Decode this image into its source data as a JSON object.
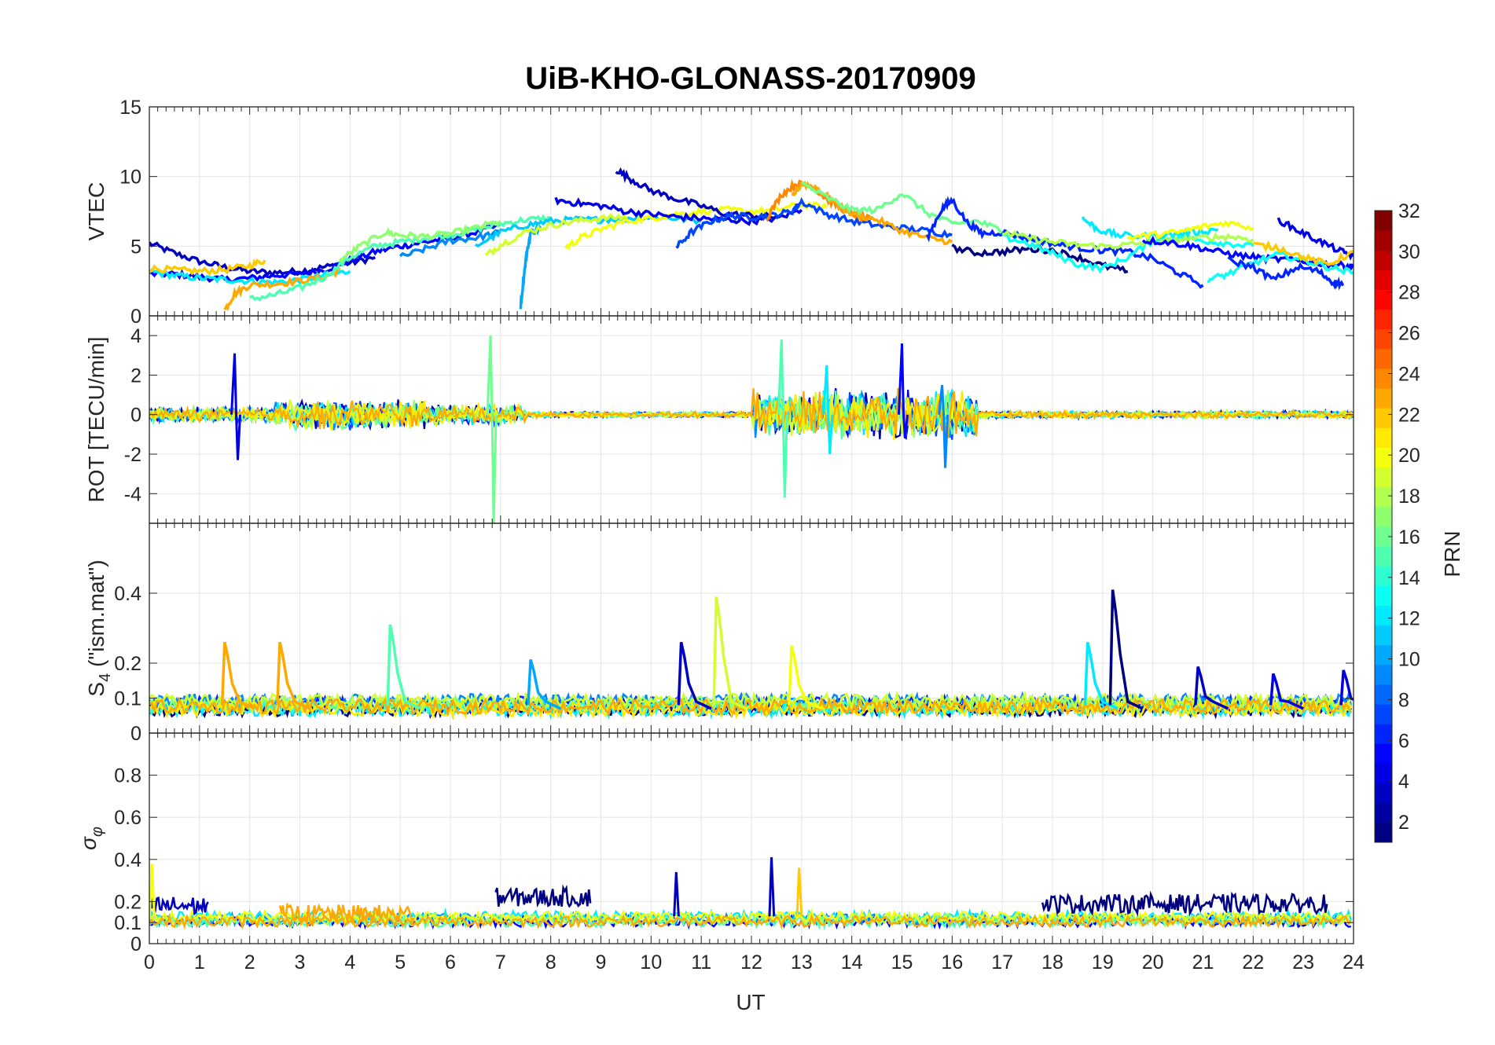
{
  "chart_data": {
    "type": "line",
    "title": "UiB-KHO-GLONASS-20170909",
    "xlabel": "UT",
    "xlim": [
      0,
      24
    ],
    "x_ticks": [
      "0",
      "1",
      "2",
      "3",
      "4",
      "5",
      "6",
      "7",
      "8",
      "9",
      "10",
      "11",
      "12",
      "13",
      "14",
      "15",
      "16",
      "17",
      "18",
      "19",
      "20",
      "21",
      "22",
      "23",
      "24"
    ],
    "grid": true,
    "colorbar": {
      "label": "PRN",
      "range": [
        1,
        32
      ],
      "colormap": "jet",
      "ticks": [
        "2",
        "4",
        "6",
        "8",
        "10",
        "12",
        "14",
        "16",
        "18",
        "20",
        "22",
        "24",
        "26",
        "28",
        "30",
        "32"
      ],
      "placement": "right"
    },
    "panels": [
      {
        "id": "vtec",
        "ylabel": "VTEC",
        "ylim": [
          0,
          15
        ],
        "y_ticks": [
          "0",
          "5",
          "10",
          "15"
        ],
        "series": [
          {
            "prn": 3,
            "x": [
              0,
              0.5,
              1,
              1.5,
              2,
              2.5,
              3,
              3.5,
              4,
              4.5
            ],
            "values": [
              5.2,
              4.5,
              3.9,
              3.5,
              3.2,
              3.1,
              3.2,
              3.5,
              3.8,
              4.2
            ]
          },
          {
            "prn": 5,
            "x": [
              0,
              0.5,
              1,
              1.5,
              2,
              2.5,
              3,
              3.5,
              4,
              4.5,
              5,
              5.5,
              6,
              6.5,
              7
            ],
            "values": [
              3.0,
              3.0,
              2.8,
              2.6,
              2.7,
              2.9,
              3.0,
              3.3,
              4.0,
              4.6,
              5.0,
              5.3,
              5.6,
              6.0,
              6.5
            ]
          },
          {
            "prn": 12,
            "x": [
              0,
              0.5,
              1,
              1.5,
              2,
              2.5,
              3,
              3.5,
              4
            ],
            "values": [
              3.2,
              2.9,
              2.7,
              2.6,
              2.5,
              2.4,
              2.6,
              2.9,
              3.2
            ]
          },
          {
            "prn": 22,
            "x": [
              0,
              0.5,
              1,
              1.5,
              2,
              2.3
            ],
            "values": [
              3.4,
              3.3,
              3.2,
              3.3,
              3.6,
              4.0
            ]
          },
          {
            "prn": 23,
            "x": [
              1.5,
              1.7,
              2,
              2.5,
              3,
              3.5,
              3.8
            ],
            "values": [
              0.4,
              1.6,
              2.2,
              2.3,
              2.5,
              2.8,
              3.3
            ]
          },
          {
            "prn": 15,
            "x": [
              2,
              2.5,
              3,
              3.5,
              4,
              4.5,
              5,
              5.5,
              6,
              6.5,
              7,
              7.5,
              8
            ],
            "values": [
              1.2,
              1.5,
              2.0,
              2.8,
              4.2,
              5.0,
              5.3,
              5.6,
              5.8,
              6.2,
              6.6,
              6.9,
              7.0
            ]
          },
          {
            "prn": 17,
            "x": [
              3.8,
              4.2,
              4.7,
              5,
              5.5,
              6,
              6.5,
              7
            ],
            "values": [
              4.0,
              5.0,
              6.0,
              5.8,
              5.7,
              5.9,
              6.3,
              6.8
            ]
          },
          {
            "prn": 9,
            "x": [
              5,
              5.5,
              6,
              6.5,
              7
            ],
            "values": [
              4.2,
              4.8,
              5.4,
              5.6,
              6.0
            ]
          },
          {
            "prn": 11,
            "x": [
              6.5,
              7,
              7.5,
              8,
              8.5,
              9,
              9.5,
              10,
              10.5,
              11
            ],
            "values": [
              5.0,
              6.0,
              6.5,
              6.8,
              6.9,
              6.9,
              7.0,
              7.1,
              7.0,
              6.8
            ]
          },
          {
            "prn": 10,
            "x": [
              7.4,
              7.5,
              7.6,
              7.8
            ],
            "values": [
              0.7,
              4.0,
              6.0,
              6.3
            ]
          },
          {
            "prn": 19,
            "x": [
              6.7,
              7,
              7.5,
              8,
              8.5,
              9,
              9.5
            ],
            "values": [
              4.3,
              5.1,
              6.0,
              6.5,
              6.8,
              7.0,
              7.1
            ]
          },
          {
            "prn": 20,
            "x": [
              8.3,
              8.6,
              9,
              9.5,
              10,
              10.5,
              11,
              11.5,
              12,
              12.5,
              13,
              13.5
            ],
            "values": [
              4.9,
              5.6,
              6.2,
              6.8,
              7.0,
              7.3,
              7.5,
              7.6,
              7.5,
              7.6,
              8.0,
              7.8
            ]
          },
          {
            "prn": 4,
            "x": [
              8.1,
              8.5,
              9,
              9.5,
              10,
              10.5,
              11,
              11.5,
              12,
              12.5,
              13
            ],
            "values": [
              8.3,
              8.1,
              7.9,
              7.5,
              7.3,
              7.1,
              7.0,
              6.9,
              6.8,
              7.0,
              7.6
            ]
          },
          {
            "prn": 3,
            "x": [
              9.3,
              9.6,
              10,
              10.5,
              11,
              11.5,
              12,
              12.5
            ],
            "values": [
              10.5,
              9.8,
              9.0,
              8.4,
              7.9,
              7.3,
              7.2,
              7.1
            ]
          },
          {
            "prn": 7,
            "x": [
              10.5,
              10.8,
              11.2,
              11.6,
              12,
              12.4,
              12.8,
              13,
              13.5,
              14,
              14.5,
              15,
              15.5,
              16
            ],
            "values": [
              4.9,
              6.0,
              6.8,
              7.2,
              7.1,
              7.2,
              7.5,
              8.2,
              7.3,
              6.8,
              6.5,
              6.3,
              6.1,
              5.8
            ]
          },
          {
            "prn": 24,
            "x": [
              12.3,
              12.6,
              12.9,
              13.2,
              13.5,
              13.8,
              14.1,
              14.4
            ],
            "values": [
              7.0,
              8.7,
              9.5,
              9.3,
              8.4,
              7.7,
              7.2,
              6.9
            ]
          },
          {
            "prn": 23,
            "x": [
              12.8,
              13,
              13.3,
              13.6,
              14,
              14.5,
              15,
              15.5,
              16
            ],
            "values": [
              8.5,
              9.5,
              9.2,
              8.3,
              7.3,
              6.9,
              6.1,
              5.6,
              5.3
            ]
          },
          {
            "prn": 16,
            "x": [
              13,
              13.5,
              14,
              14.5,
              15,
              15.5,
              16,
              16.5,
              17,
              17.5,
              18
            ],
            "values": [
              9.5,
              8.5,
              7.6,
              7.6,
              8.8,
              7.4,
              6.6,
              6.8,
              6.1,
              5.6,
              5.2
            ]
          },
          {
            "prn": 6,
            "x": [
              15.5,
              15.8,
              16,
              16.3,
              16.6,
              17,
              17.5,
              18,
              18.5,
              19,
              19.5,
              20,
              20.5,
              21
            ],
            "values": [
              5.6,
              7.7,
              8.3,
              6.7,
              5.9,
              6.0,
              5.6,
              5.2,
              4.9,
              4.7,
              4.6,
              4.1,
              3.1,
              2.2
            ]
          },
          {
            "prn": 1,
            "x": [
              16,
              16.5,
              17,
              17.5,
              18,
              18.5,
              19,
              19.5
            ],
            "values": [
              4.9,
              4.5,
              4.6,
              4.8,
              4.7,
              4.2,
              3.6,
              3.2
            ]
          },
          {
            "prn": 13,
            "x": [
              17,
              17.5,
              18,
              18.5,
              19,
              19.5,
              20,
              20.5,
              21,
              21.5,
              22
            ],
            "values": [
              5.7,
              5.2,
              4.5,
              3.7,
              3.4,
              4.2,
              5.4,
              5.6,
              5.4,
              5.2,
              5.0
            ]
          },
          {
            "prn": 18,
            "x": [
              17,
              17.5,
              18,
              18.5,
              19,
              19.5,
              20,
              20.5,
              21,
              21.5,
              22
            ],
            "values": [
              6.0,
              5.6,
              5.3,
              5.1,
              5.0,
              5.1,
              5.3,
              5.5,
              5.6,
              5.7,
              5.5
            ]
          },
          {
            "prn": 12,
            "x": [
              18.6,
              18.9,
              19.3,
              19.8,
              20.3,
              20.8,
              21.3
            ],
            "values": [
              7.0,
              6.2,
              5.8,
              5.7,
              5.8,
              6.0,
              6.2
            ]
          },
          {
            "prn": 20,
            "x": [
              19.5,
              20,
              20.5,
              21,
              21.5,
              22
            ],
            "values": [
              5.6,
              5.8,
              6.0,
              6.4,
              6.7,
              6.3
            ]
          },
          {
            "prn": 5,
            "x": [
              19.8,
              20.3,
              20.8,
              21.3,
              21.8,
              22.3,
              22.8,
              23.3,
              23.8,
              24
            ],
            "values": [
              5.4,
              5.3,
              5.0,
              4.6,
              4.3,
              4.1,
              4.0,
              3.8,
              3.6,
              3.5
            ]
          },
          {
            "prn": 13,
            "x": [
              21.1,
              21.5,
              22,
              22.5,
              23,
              23.5,
              24
            ],
            "values": [
              2.6,
              3.0,
              3.8,
              4.4,
              4.0,
              3.5,
              3.1
            ]
          },
          {
            "prn": 4,
            "x": [
              22.5,
              22.9,
              23.3,
              23.7,
              24
            ],
            "values": [
              6.9,
              6.1,
              5.4,
              4.7,
              4.3
            ]
          },
          {
            "prn": 6,
            "x": [
              21.5,
              22,
              22.4,
              22.9,
              23.3,
              23.6,
              23.8
            ],
            "values": [
              4.0,
              3.5,
              2.6,
              3.5,
              3.2,
              2.4,
              2.3
            ]
          },
          {
            "prn": 22,
            "x": [
              22,
              22.5,
              23,
              23.5,
              24
            ],
            "values": [
              5.1,
              4.9,
              4.2,
              3.7,
              4.6
            ]
          }
        ]
      },
      {
        "id": "rot",
        "ylabel": "ROT [TECU/min]",
        "ylim": [
          -5.5,
          5
        ],
        "y_ticks": [
          "-4",
          "-2",
          "0",
          "2",
          "4"
        ],
        "note": "noisy fluctuations around 0; enhanced activity 3-5 UT and 12-16 UT with spikes",
        "spikes": [
          {
            "prn": 4,
            "x": 1.7,
            "values": [
              3.1,
              -2.3
            ]
          },
          {
            "prn": 16,
            "x": 6.8,
            "values": [
              4.0,
              -5.5
            ]
          },
          {
            "prn": 15,
            "x": 12.6,
            "values": [
              3.8,
              -4.2
            ]
          },
          {
            "prn": 5,
            "x": 15.0,
            "values": [
              3.6,
              -1.2
            ]
          },
          {
            "prn": 9,
            "x": 15.8,
            "values": [
              1.5,
              -2.7
            ]
          },
          {
            "prn": 12,
            "x": 13.5,
            "values": [
              2.5,
              -2.0
            ]
          }
        ],
        "activity": [
          {
            "range": [
              0,
              2.5
            ],
            "amp": 0.3
          },
          {
            "range": [
              2.5,
              5.5
            ],
            "amp": 0.6
          },
          {
            "range": [
              5.5,
              7.5
            ],
            "amp": 0.4
          },
          {
            "range": [
              7.5,
              12
            ],
            "amp": 0.12
          },
          {
            "range": [
              12,
              16.5
            ],
            "amp": 1.0
          },
          {
            "range": [
              16.5,
              24
            ],
            "amp": 0.15
          }
        ]
      },
      {
        "id": "s4",
        "ylabel": "S4 (\"ism.mat\")",
        "ylabel_main": "S",
        "ylabel_sub": "4",
        "ylabel_rest": " (\"ism.mat\")",
        "ylim": [
          0,
          0.6
        ],
        "y_ticks": [
          "0",
          "0.1",
          "0.2",
          "0.4"
        ],
        "baseline": 0.06,
        "spikes": [
          {
            "prn": 23,
            "x": 1.5,
            "peak": 0.26
          },
          {
            "prn": 23,
            "x": 2.6,
            "peak": 0.26
          },
          {
            "prn": 15,
            "x": 4.8,
            "peak": 0.31
          },
          {
            "prn": 10,
            "x": 7.6,
            "peak": 0.21
          },
          {
            "prn": 3,
            "x": 10.6,
            "peak": 0.26
          },
          {
            "prn": 19,
            "x": 11.3,
            "peak": 0.39
          },
          {
            "prn": 20,
            "x": 12.8,
            "peak": 0.25
          },
          {
            "prn": 12,
            "x": 18.7,
            "peak": 0.26
          },
          {
            "prn": 1,
            "x": 19.2,
            "peak": 0.41
          },
          {
            "prn": 3,
            "x": 20.9,
            "peak": 0.19
          },
          {
            "prn": 4,
            "x": 22.4,
            "peak": 0.17
          },
          {
            "prn": 4,
            "x": 23.8,
            "peak": 0.18
          }
        ]
      },
      {
        "id": "sigma",
        "ylabel": "σφ",
        "ylabel_main": "σ",
        "ylabel_sub": "φ",
        "ylim": [
          0,
          1
        ],
        "y_ticks": [
          "0",
          "0.1",
          "0.2",
          "0.4",
          "0.6",
          "0.8"
        ],
        "baseline": 0.12,
        "activity": [
          {
            "prn": 3,
            "range": [
              0,
              1.2
            ],
            "level": 0.18
          },
          {
            "prn": 1,
            "range": [
              6.9,
              8.8
            ],
            "level": 0.22
          },
          {
            "prn": 1,
            "range": [
              17.8,
              23.5
            ],
            "level": 0.19
          },
          {
            "prn": 23,
            "range": [
              2.6,
              5.3
            ],
            "level": 0.14
          }
        ],
        "spikes": [
          {
            "prn": 20,
            "x": 0.05,
            "peak": 0.38
          },
          {
            "prn": 3,
            "x": 12.4,
            "peak": 0.41
          },
          {
            "prn": 22,
            "x": 12.95,
            "peak": 0.36
          },
          {
            "prn": 3,
            "x": 10.5,
            "peak": 0.34
          }
        ]
      }
    ]
  }
}
